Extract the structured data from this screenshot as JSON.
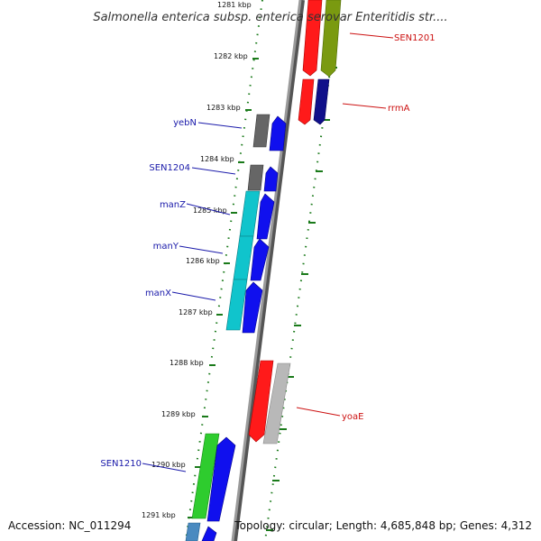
{
  "title": "Salmonella enterica subsp. enterica serovar Enteritidis str....",
  "accession": "Accession: NC_011294",
  "summary": "Topology: circular; Length: 4,685,848 bp; Genes: 4,312",
  "ticks": [
    "1281 kbp",
    "1282 kbp",
    "1283 kbp",
    "1284 kbp",
    "1285 kbp",
    "1286 kbp",
    "1287 kbp",
    "1288 kbp",
    "1289 kbp",
    "1290 kbp",
    "1291 kbp"
  ],
  "labels": {
    "SEN1201": "SEN1201",
    "rrmA": "rrmA",
    "yebN": "yebN",
    "SEN1204": "SEN1204",
    "manZ": "manZ",
    "manY": "manY",
    "manX": "manX",
    "yoaE": "yoaE",
    "SEN1210": "SEN1210"
  },
  "colors": {
    "red": "#ff1a1a",
    "olive": "#7a9a10",
    "navy": "#10108a",
    "blue": "#1010ee",
    "gray": "#666666",
    "cyan": "#10c4cc",
    "green": "#2ecc2e",
    "silver": "#b8b8b8",
    "steel": "#4a8ac0",
    "label_blue": "#1a1aaa",
    "label_red": "#cc1111",
    "tick_green": "#1a7a1a",
    "backbone": "#888888"
  }
}
